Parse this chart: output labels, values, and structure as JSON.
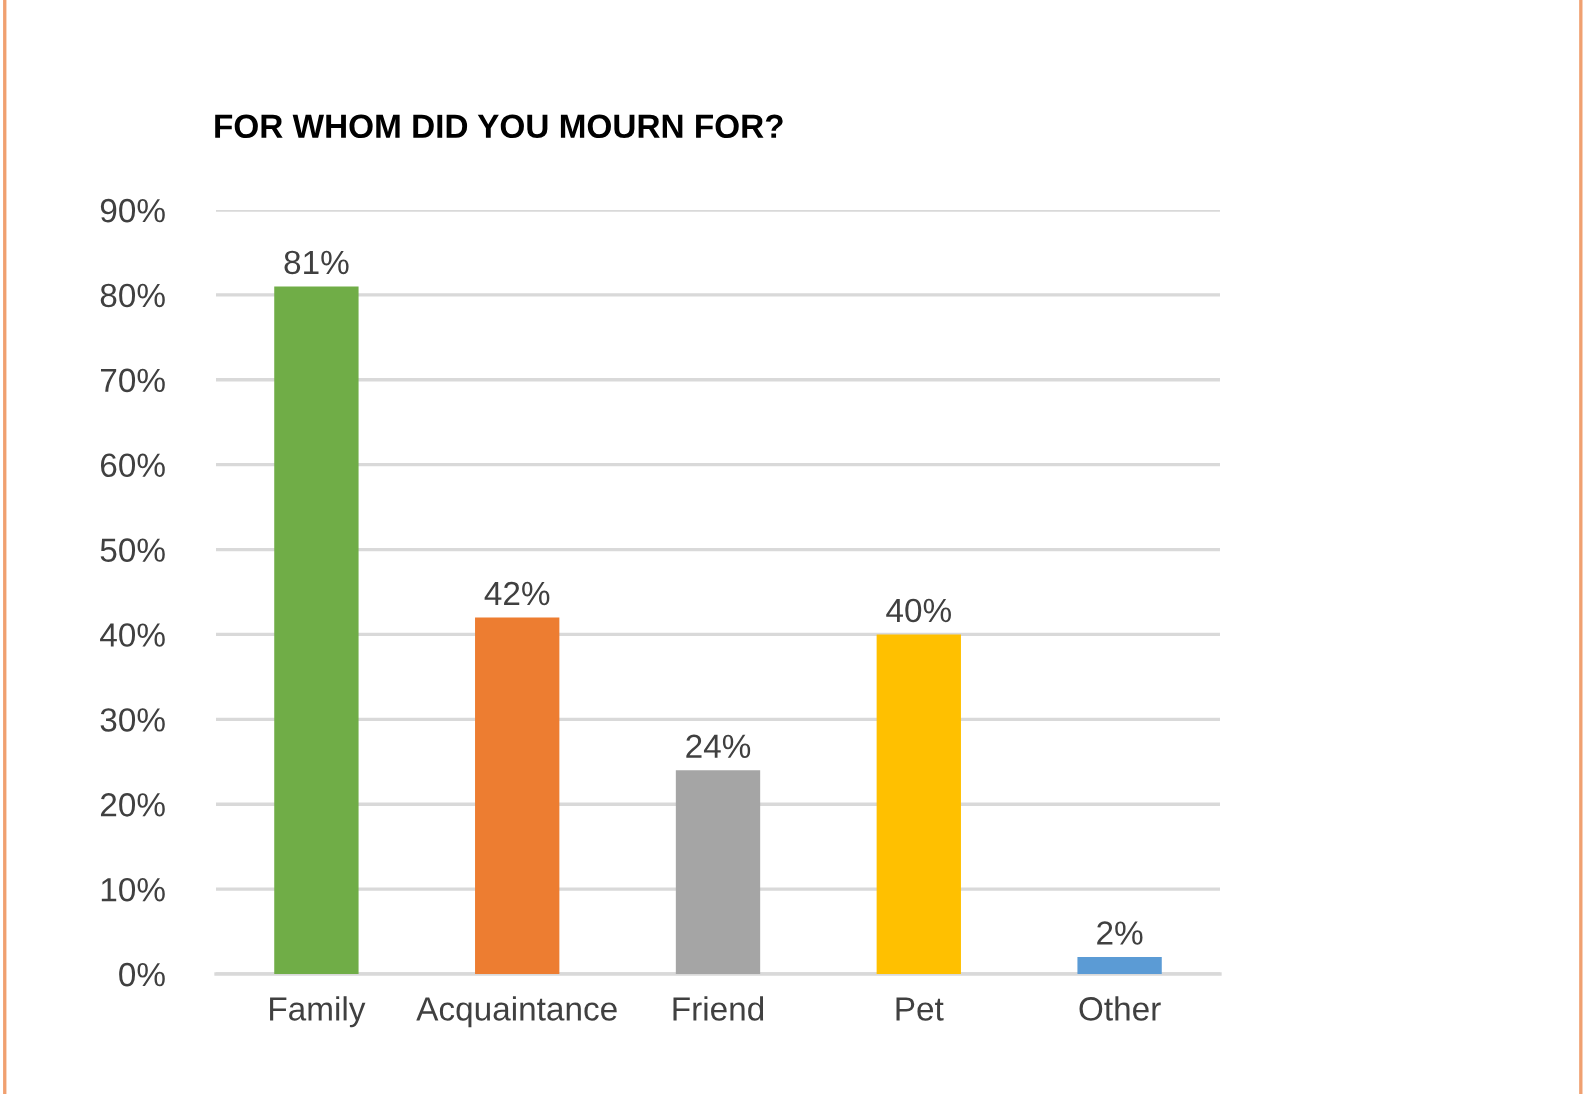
{
  "chart_data": {
    "type": "bar",
    "title": "FOR WHOM DID YOU MOURN FOR?",
    "categories": [
      "Family",
      "Acquaintance",
      "Friend",
      "Pet",
      "Other"
    ],
    "values": [
      81,
      42,
      24,
      40,
      2
    ],
    "colors": [
      "#70ad47",
      "#ed7d31",
      "#a5a5a5",
      "#ffc000",
      "#5b9bd5"
    ],
    "value_labels": [
      "81%",
      "42%",
      "24%",
      "40%",
      "2%"
    ],
    "ylim": [
      0,
      90
    ],
    "yticks": [
      {
        "value": 0,
        "label": "0%"
      },
      {
        "value": 10,
        "label": "10%"
      },
      {
        "value": 20,
        "label": "20%"
      },
      {
        "value": 30,
        "label": "30%"
      },
      {
        "value": 40,
        "label": "40%"
      },
      {
        "value": 50,
        "label": "50%"
      },
      {
        "value": 60,
        "label": "60%"
      },
      {
        "value": 70,
        "label": "70%"
      },
      {
        "value": 80,
        "label": "80%"
      },
      {
        "value": 90,
        "label": "90%"
      }
    ],
    "grid": "y"
  }
}
